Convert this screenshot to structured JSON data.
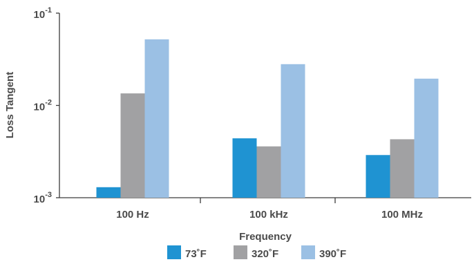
{
  "chart_data": {
    "type": "bar",
    "title": "",
    "xlabel": "Frequency",
    "ylabel": "Loss Tangent",
    "yscale": "log",
    "ylim": [
      0.001,
      0.1
    ],
    "yticks": [
      {
        "value": 0.001,
        "base": "10",
        "exp": "-3"
      },
      {
        "value": 0.01,
        "base": "10",
        "exp": "-2"
      },
      {
        "value": 0.1,
        "base": "10",
        "exp": "-1"
      }
    ],
    "categories": [
      "100 Hz",
      "100 kHz",
      "100 MHz"
    ],
    "series": [
      {
        "name": "73˚F",
        "color": "#1f93d2",
        "values": [
          0.0013,
          0.0044,
          0.0029
        ]
      },
      {
        "name": "320˚F",
        "color": "#a1a1a3",
        "values": [
          0.0135,
          0.0036,
          0.0043
        ]
      },
      {
        "name": "390˚F",
        "color": "#9bc0e4",
        "values": [
          0.052,
          0.028,
          0.0195
        ]
      }
    ],
    "grid": false,
    "legend_position": "bottom"
  }
}
